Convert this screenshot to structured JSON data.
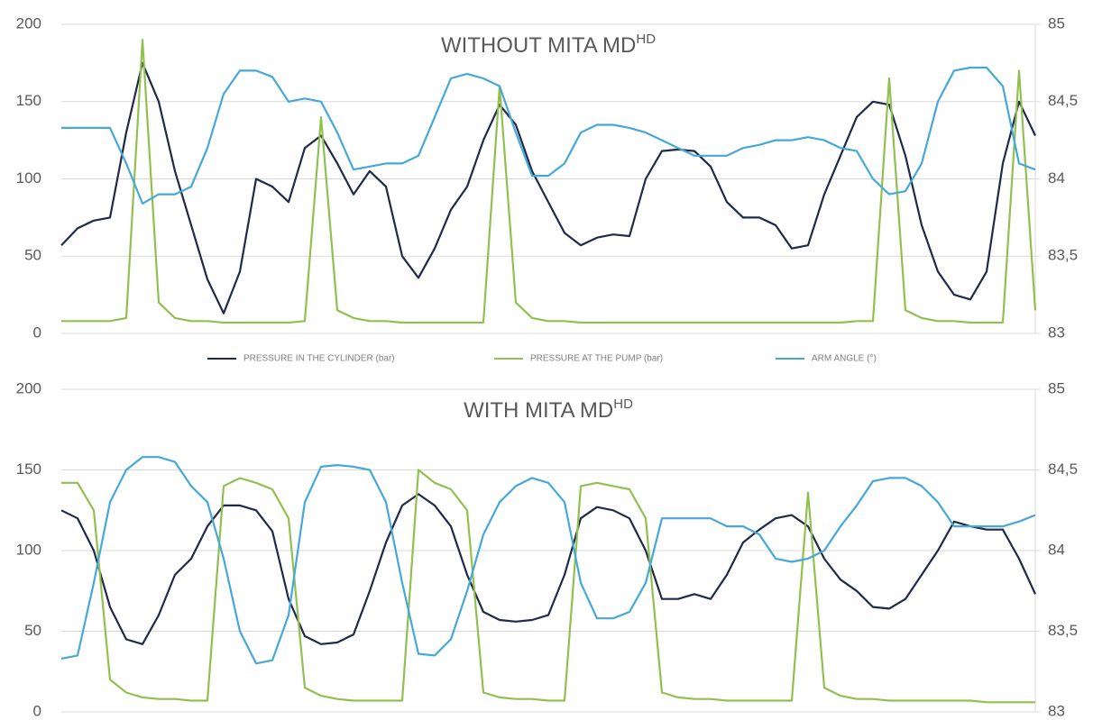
{
  "chart_data": [
    {
      "type": "line",
      "title": "WITHOUT MITA MD",
      "title_sup": "HD",
      "ylim": [
        0,
        200
      ],
      "yticks": [
        0,
        50,
        100,
        150,
        200
      ],
      "y2lim": [
        83,
        85
      ],
      "y2ticks": [
        83,
        {
          "value": 83.5,
          "label": "83,5"
        },
        84,
        {
          "value": 84.5,
          "label": "84,5"
        },
        85
      ],
      "grid": true,
      "legend": "bottom",
      "series": [
        {
          "name": "PRESSURE IN THE CYLINDER (bar)",
          "color": "#1f2a4a",
          "values": [
            57,
            68,
            73,
            75,
            130,
            175,
            150,
            105,
            70,
            35,
            13,
            40,
            100,
            95,
            85,
            120,
            128,
            110,
            90,
            105,
            95,
            50,
            36,
            55,
            80,
            95,
            125,
            148,
            135,
            105,
            85,
            65,
            57,
            62,
            64,
            63,
            100,
            118,
            119,
            118,
            108,
            85,
            75,
            75,
            70,
            55,
            57,
            90,
            115,
            140,
            150,
            148,
            115,
            70,
            40,
            25,
            22,
            40,
            110,
            150,
            128
          ]
        },
        {
          "name": "PRESSURE AT THE PUMP (bar)",
          "color": "#92c050",
          "values": [
            8,
            8,
            8,
            8,
            10,
            190,
            20,
            10,
            8,
            8,
            7,
            7,
            7,
            7,
            7,
            8,
            140,
            15,
            10,
            8,
            8,
            7,
            7,
            7,
            7,
            7,
            7,
            160,
            20,
            10,
            8,
            8,
            7,
            7,
            7,
            7,
            7,
            7,
            7,
            7,
            7,
            7,
            7,
            7,
            7,
            7,
            7,
            7,
            7,
            8,
            8,
            165,
            15,
            10,
            8,
            8,
            7,
            7,
            7,
            170,
            15
          ]
        },
        {
          "name": "ARM ANGLE (°)",
          "color": "#45a8d8",
          "axis": "y2",
          "values": [
            84.33,
            84.33,
            84.33,
            84.33,
            84.1,
            83.84,
            83.9,
            83.9,
            83.95,
            84.2,
            84.55,
            84.7,
            84.7,
            84.66,
            84.5,
            84.52,
            84.5,
            84.3,
            84.06,
            84.08,
            84.1,
            84.1,
            84.15,
            84.4,
            84.65,
            84.68,
            84.65,
            84.6,
            84.3,
            84.02,
            84.02,
            84.1,
            84.3,
            84.35,
            84.35,
            84.33,
            84.3,
            84.25,
            84.2,
            84.15,
            84.15,
            84.15,
            84.2,
            84.22,
            84.25,
            84.25,
            84.27,
            84.25,
            84.2,
            84.18,
            84.0,
            83.9,
            83.92,
            84.1,
            84.5,
            84.7,
            84.72,
            84.72,
            84.6,
            84.1,
            84.06
          ]
        }
      ]
    },
    {
      "type": "line",
      "title": "WITH MITA MD",
      "title_sup": "HD",
      "ylim": [
        0,
        200
      ],
      "yticks": [
        0,
        50,
        100,
        150,
        200
      ],
      "y2lim": [
        83,
        85
      ],
      "y2ticks": [
        83,
        {
          "value": 83.5,
          "label": "83,5"
        },
        84,
        {
          "value": 84.5,
          "label": "84,5"
        },
        85
      ],
      "grid": true,
      "series": [
        {
          "color": "#1f2a4a",
          "values": [
            125,
            120,
            100,
            65,
            45,
            42,
            60,
            85,
            95,
            115,
            128,
            128,
            125,
            112,
            70,
            47,
            42,
            43,
            48,
            75,
            105,
            128,
            135,
            128,
            115,
            85,
            62,
            57,
            56,
            57,
            60,
            85,
            120,
            127,
            125,
            120,
            100,
            70,
            70,
            73,
            70,
            85,
            105,
            113,
            120,
            122,
            115,
            95,
            82,
            75,
            65,
            64,
            70,
            85,
            100,
            118,
            115,
            113,
            113,
            95,
            73
          ]
        },
        {
          "color": "#92c050",
          "values": [
            142,
            142,
            125,
            20,
            12,
            9,
            8,
            8,
            7,
            7,
            140,
            145,
            142,
            138,
            120,
            15,
            10,
            8,
            7,
            7,
            7,
            7,
            150,
            142,
            138,
            125,
            12,
            9,
            8,
            8,
            7,
            7,
            140,
            142,
            140,
            138,
            120,
            12,
            9,
            8,
            8,
            7,
            7,
            7,
            7,
            7,
            136,
            15,
            10,
            8,
            8,
            7,
            7,
            7,
            7,
            7,
            7,
            6,
            6,
            6,
            6
          ]
        },
        {
          "color": "#45a8d8",
          "axis": "y2",
          "values": [
            83.33,
            83.35,
            83.8,
            84.3,
            84.5,
            84.58,
            84.58,
            84.55,
            84.4,
            84.3,
            83.95,
            83.5,
            83.3,
            83.32,
            83.6,
            84.3,
            84.52,
            84.53,
            84.52,
            84.5,
            84.3,
            83.8,
            83.36,
            83.35,
            83.45,
            83.75,
            84.1,
            84.3,
            84.4,
            84.45,
            84.42,
            84.3,
            83.8,
            83.58,
            83.58,
            83.62,
            83.8,
            84.2,
            84.2,
            84.2,
            84.2,
            84.15,
            84.15,
            84.1,
            83.95,
            83.93,
            83.95,
            84.0,
            84.15,
            84.28,
            84.43,
            84.45,
            84.45,
            84.4,
            84.3,
            84.15,
            84.15,
            84.15,
            84.15,
            84.18,
            84.22
          ]
        }
      ]
    }
  ]
}
